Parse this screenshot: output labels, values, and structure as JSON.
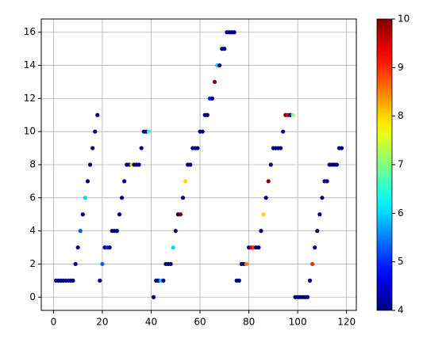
{
  "chart_data": {
    "type": "scatter",
    "colormap": "jet",
    "grid": true,
    "x": [
      1,
      2,
      3,
      4,
      5,
      6,
      7,
      8,
      9,
      10,
      11,
      12,
      13,
      14,
      15,
      16,
      17,
      18,
      19,
      20,
      21,
      22,
      23,
      24,
      25,
      26,
      27,
      28,
      29,
      30,
      31,
      32,
      33,
      34,
      35,
      36,
      37,
      38,
      39,
      41,
      42,
      43,
      44,
      45,
      46,
      47,
      48,
      49,
      50,
      51,
      52,
      53,
      54,
      55,
      56,
      57,
      58,
      59,
      60,
      61,
      62,
      63,
      64,
      65,
      66,
      67,
      68,
      69,
      70,
      71,
      72,
      73,
      74,
      75,
      76,
      77,
      78,
      79,
      80,
      81,
      82,
      83,
      84,
      85,
      86,
      87,
      88,
      89,
      90,
      91,
      92,
      93,
      94,
      95,
      96,
      97,
      98,
      99,
      100,
      101,
      102,
      103,
      104,
      105,
      106,
      107,
      108,
      109,
      110,
      111,
      112,
      113,
      114,
      115,
      116,
      117,
      118
    ],
    "values": [
      1,
      1,
      1,
      1,
      1,
      1,
      1,
      1,
      2,
      3,
      4,
      5,
      6,
      7,
      8,
      9,
      10,
      11,
      1,
      2,
      3,
      3,
      3,
      4,
      4,
      4,
      5,
      6,
      7,
      8,
      8,
      8,
      8,
      8,
      8,
      9,
      10,
      10,
      10,
      0,
      1,
      1,
      1,
      1,
      2,
      2,
      2,
      3,
      4,
      5,
      5,
      6,
      7,
      8,
      8,
      9,
      9,
      9,
      10,
      10,
      11,
      11,
      12,
      12,
      13,
      14,
      14,
      15,
      15,
      16,
      16,
      16,
      16,
      1,
      1,
      2,
      2,
      2,
      3,
      3,
      3,
      3,
      3,
      4,
      5,
      6,
      7,
      8,
      9,
      9,
      9,
      9,
      10,
      11,
      11,
      11,
      11,
      0,
      0,
      0,
      0,
      0,
      0,
      1,
      2,
      3,
      4,
      5,
      6,
      7,
      7,
      8,
      8,
      8,
      8,
      9,
      9
    ],
    "color_values": [
      4,
      4,
      4,
      4,
      4,
      4,
      4,
      4,
      4,
      4,
      5.3,
      4,
      6,
      4,
      4,
      4,
      4,
      4,
      4,
      5.3,
      4,
      5,
      4,
      4,
      4,
      4,
      4,
      4,
      4,
      4,
      4,
      8,
      4,
      4,
      4,
      4,
      4,
      4,
      6.5,
      4,
      4,
      4,
      6,
      4,
      4,
      4,
      4,
      6,
      4,
      4,
      10,
      4,
      8,
      4,
      4,
      4,
      4,
      4,
      4,
      4,
      4,
      4,
      5,
      4,
      10,
      6,
      4,
      4,
      4,
      4,
      4,
      4,
      4,
      4,
      4,
      4,
      4,
      8.5,
      4,
      9.5,
      9,
      4,
      4,
      4,
      8,
      4,
      10,
      4,
      4,
      4,
      4,
      4,
      4,
      10,
      9.5,
      4,
      7,
      4,
      4,
      4,
      4,
      4,
      4,
      4,
      9,
      4,
      4,
      4,
      4,
      4,
      4,
      4,
      4,
      4,
      4,
      4,
      4
    ],
    "xlim": [
      -5,
      124
    ],
    "xticks": [
      0,
      20,
      40,
      60,
      80,
      100,
      120
    ],
    "ylim": [
      -0.8,
      16.8
    ],
    "yticks": [
      0,
      2,
      4,
      6,
      8,
      10,
      12,
      14,
      16
    ],
    "clim": [
      4,
      10
    ],
    "cticks": [
      4,
      5,
      6,
      7,
      8,
      9,
      10
    ]
  }
}
